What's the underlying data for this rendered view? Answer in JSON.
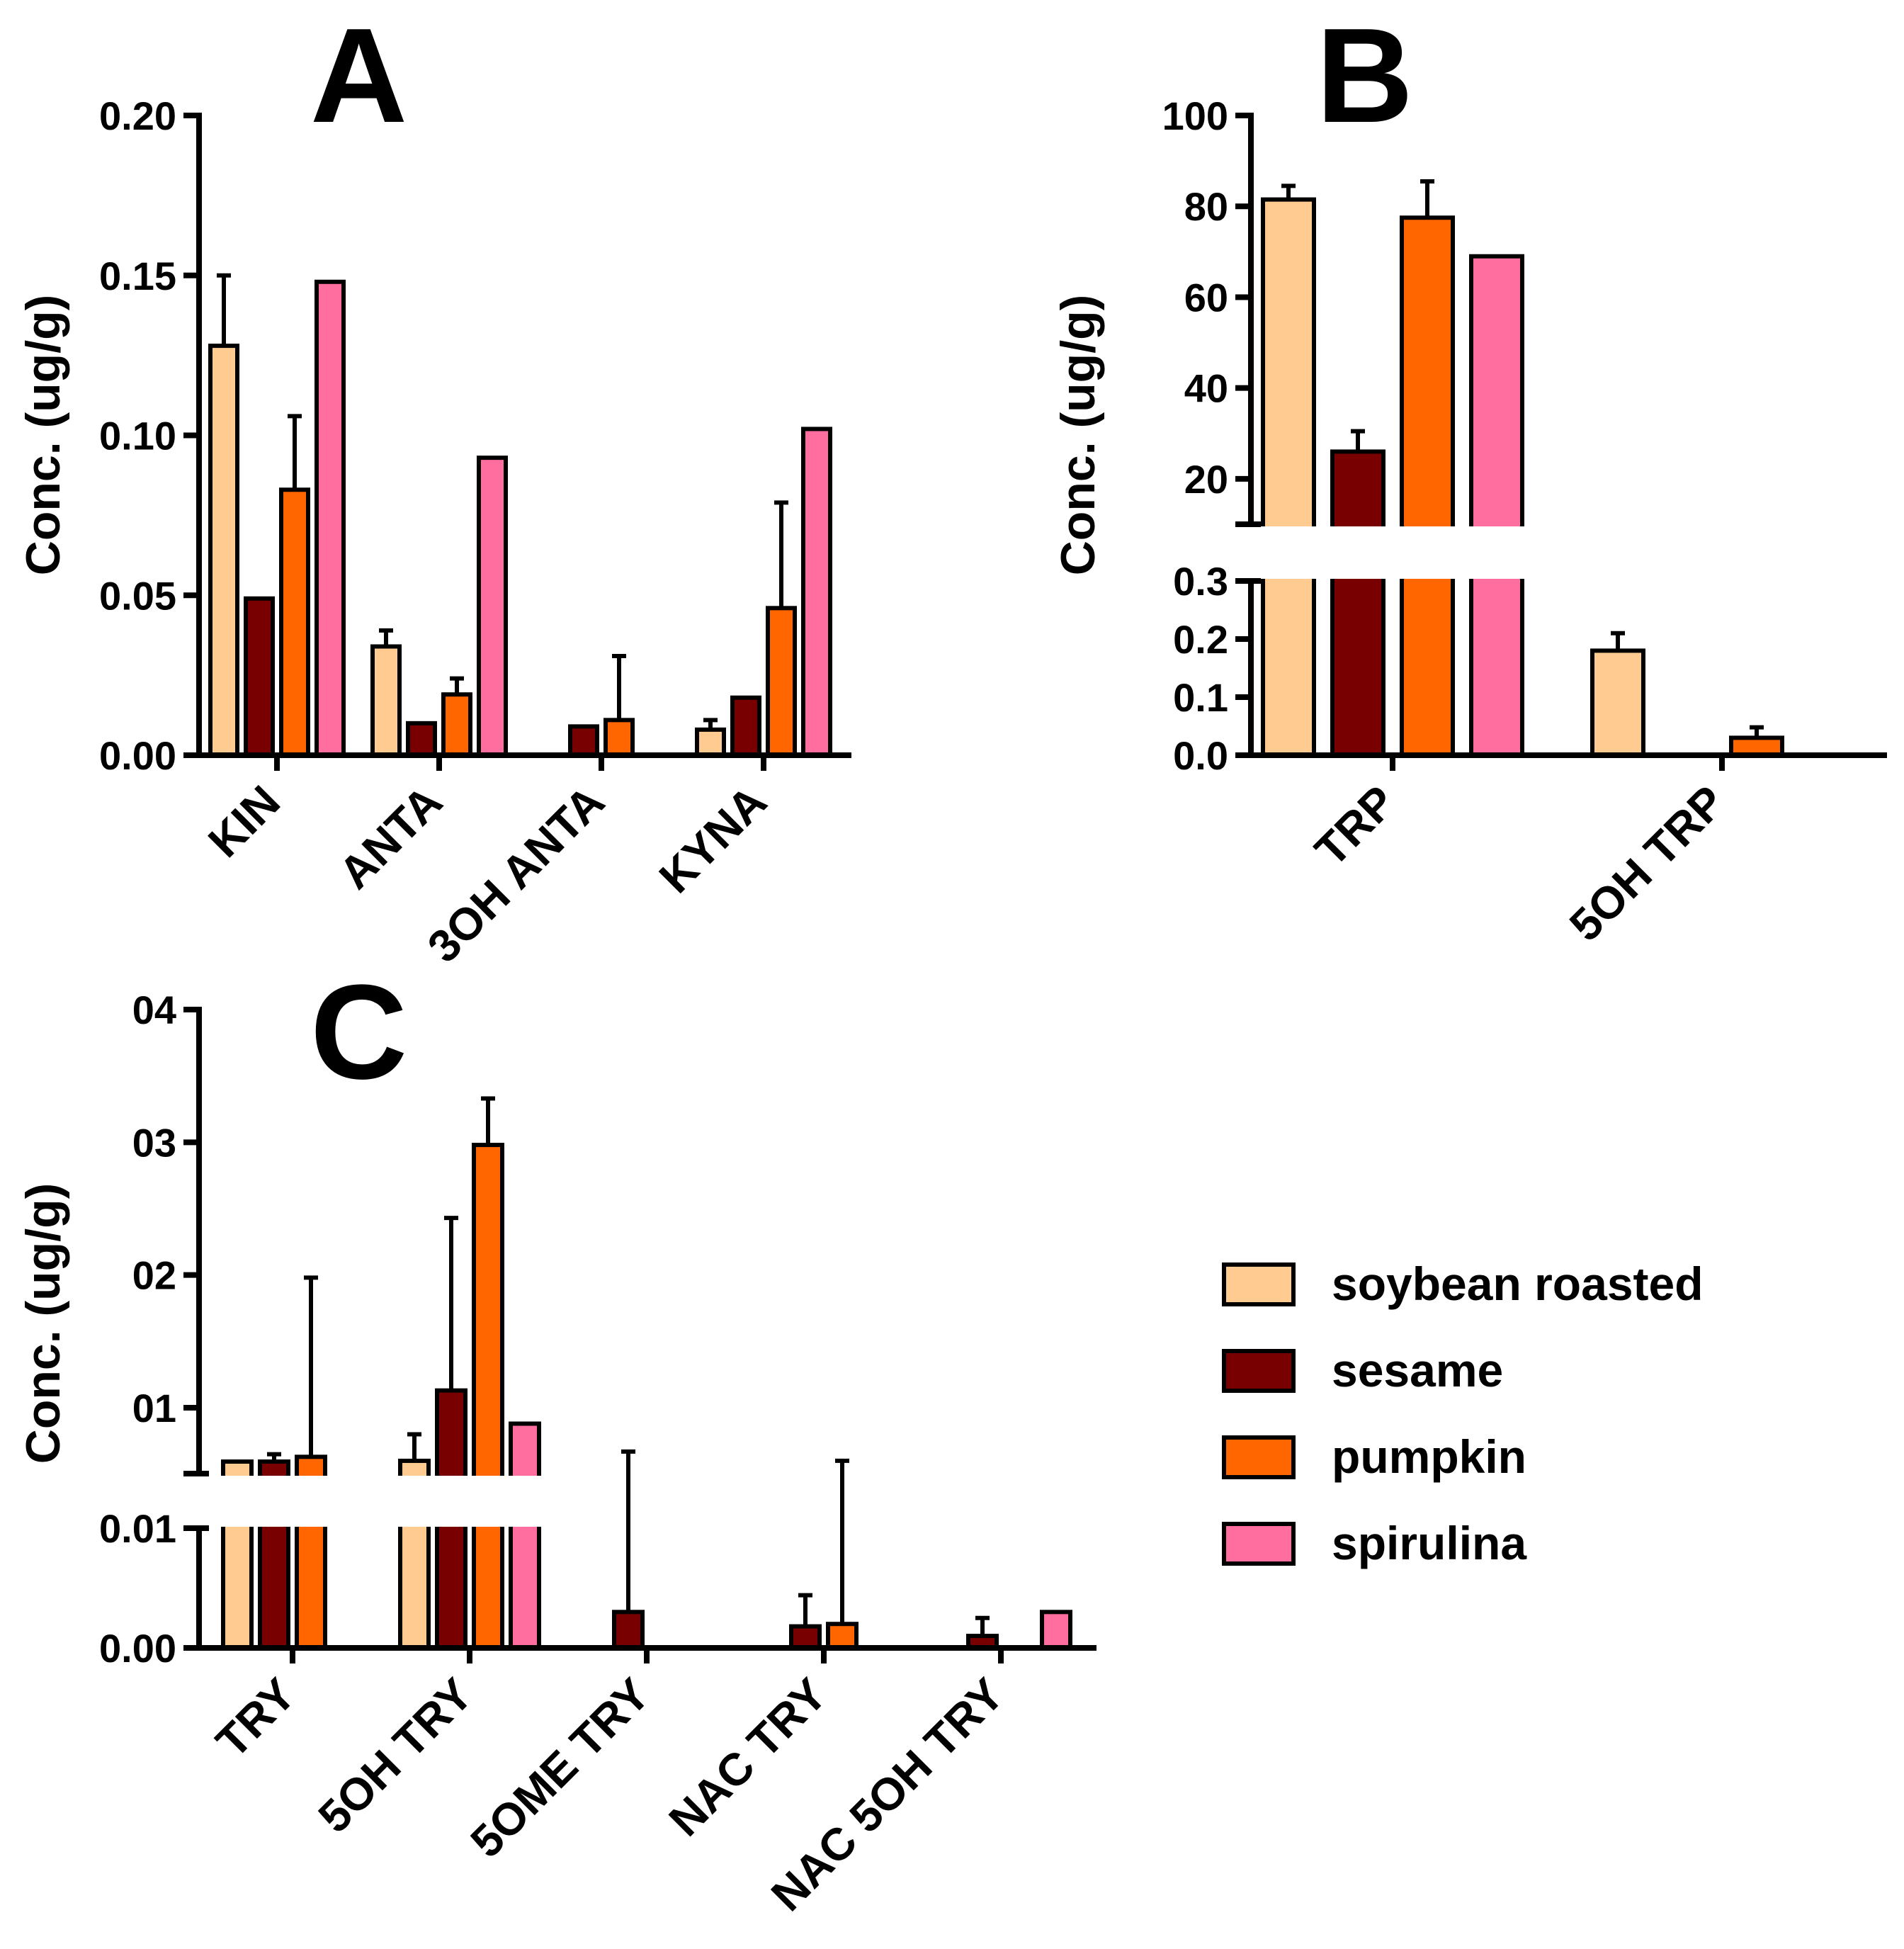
{
  "legend": [
    {
      "name": "soybean roasted",
      "color": "#FFCB91"
    },
    {
      "name": "sesame",
      "color": "#780000"
    },
    {
      "name": "pumpkin",
      "color": "#FF6600"
    },
    {
      "name": "spirulina",
      "color": "#FF6E9E"
    }
  ],
  "chart_data": [
    {
      "panel": "A",
      "type": "bar",
      "ylabel": "Conc. (ug/g)",
      "ylim": [
        0,
        0.2
      ],
      "yticks": [
        "0.00",
        "0.05",
        "0.10",
        "0.15",
        "0.20"
      ],
      "categories": [
        "KIN",
        "ANTA",
        "3OH ANTA",
        "KYNA"
      ],
      "series": [
        {
          "name": "soybean roasted",
          "values": [
            0.128,
            0.034,
            0.0,
            0.008
          ],
          "errors": [
            0.022,
            0.005,
            0.0,
            0.003
          ]
        },
        {
          "name": "sesame",
          "values": [
            0.049,
            0.01,
            0.009,
            0.018
          ],
          "errors": [
            0.0,
            0.0,
            0.0,
            0.0
          ]
        },
        {
          "name": "pumpkin",
          "values": [
            0.083,
            0.019,
            0.011,
            0.046
          ],
          "errors": [
            0.023,
            0.005,
            0.02,
            0.033
          ]
        },
        {
          "name": "spirulina",
          "values": [
            0.148,
            0.093,
            0.0,
            0.102
          ],
          "errors": [
            0.0,
            0.0,
            0.0,
            0.0
          ]
        }
      ]
    },
    {
      "panel": "B",
      "type": "bar",
      "ylabel": "Conc. (ug/g)",
      "broken_axis": {
        "lower": [
          0,
          0.3
        ],
        "upper": [
          10,
          100
        ]
      },
      "yticks_lower": [
        "0.0",
        "0.1",
        "0.2",
        "0.3"
      ],
      "yticks_upper": [
        "20",
        "40",
        "60",
        "80",
        "100"
      ],
      "categories": [
        "TRP",
        "5OH TRP"
      ],
      "series": [
        {
          "name": "soybean roasted",
          "values": [
            81.5,
            0.18
          ],
          "errors": [
            3.0,
            0.03
          ]
        },
        {
          "name": "sesame",
          "values": [
            26,
            0.0
          ],
          "errors": [
            4.5,
            0.0
          ]
        },
        {
          "name": "pumpkin",
          "values": [
            77.5,
            0.03
          ],
          "errors": [
            8.0,
            0.018
          ]
        },
        {
          "name": "spirulina",
          "values": [
            69,
            0.0
          ],
          "errors": [
            0.0,
            0.0
          ]
        }
      ]
    },
    {
      "panel": "C",
      "type": "bar",
      "ylabel": "Conc. (ug/g)",
      "broken_axis": {
        "lower": [
          0,
          0.01
        ],
        "upper": [
          0.005,
          0.04
        ]
      },
      "yticks_lower": [
        "0.00",
        "0.01"
      ],
      "yticks_upper": [
        "01",
        "02",
        "03",
        "04"
      ],
      "categories": [
        "TRY",
        "5OH TRY",
        "5OME TRY",
        "NAC TRY",
        "NAC 5OH TRY"
      ],
      "series": [
        {
          "name": "soybean roasted",
          "values": [
            0.0045,
            0.006,
            0.0,
            0.0,
            0.0
          ],
          "errors": [
            0.0,
            0.002,
            0.0,
            0.0,
            0.0
          ]
        },
        {
          "name": "sesame",
          "values": [
            0.0045,
            0.0113,
            0.003,
            0.0018,
            0.001
          ],
          "errors": [
            0.002,
            0.013,
            0.0037,
            0.0026,
            0.0015
          ]
        },
        {
          "name": "pumpkin",
          "values": [
            0.0063,
            0.0298,
            0.0,
            0.002,
            0.0
          ],
          "errors": [
            0.0135,
            0.0035,
            0.0,
            0.004,
            0.0
          ]
        },
        {
          "name": "spirulina",
          "values": [
            0.0,
            0.0088,
            0.0,
            0.0,
            0.003
          ],
          "errors": [
            0.0,
            0.0,
            0.0,
            0.0,
            0.0
          ]
        }
      ]
    }
  ]
}
